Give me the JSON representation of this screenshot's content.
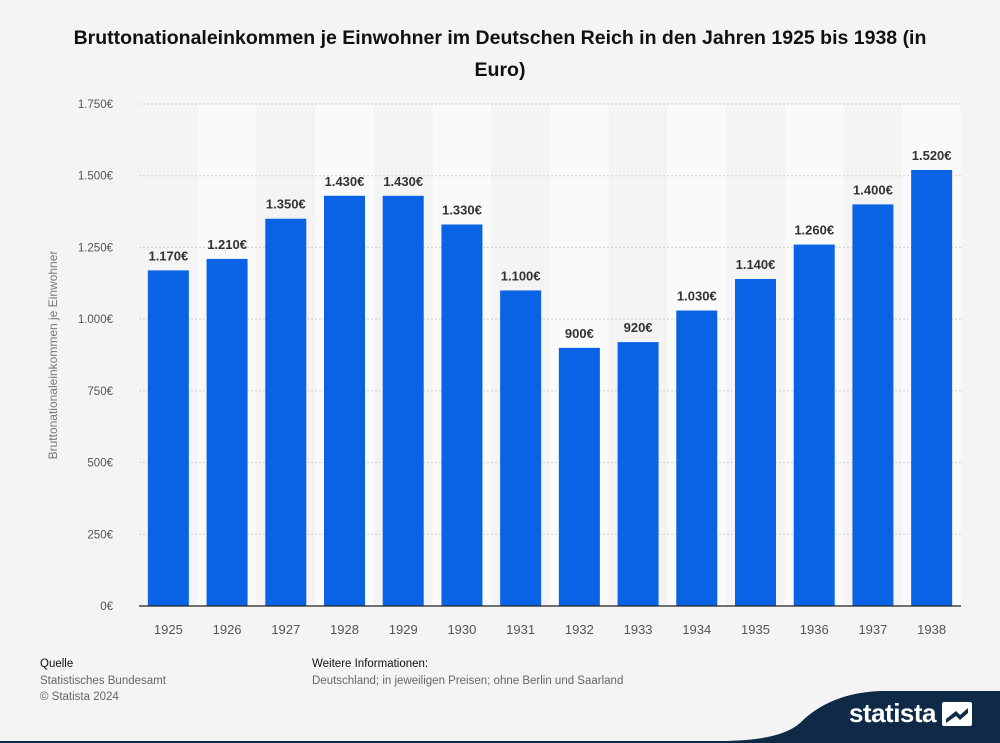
{
  "title": "Bruttonationaleinkommen je Einwohner im Deutschen Reich in den Jahren 1925 bis 1938 (in Euro)",
  "colors": {
    "bar": "#0a63e5",
    "grid": "#cfcfcf",
    "stripe": "#fafafa",
    "label": "#333333",
    "tick": "#555555",
    "brand_band": "#0e2a47"
  },
  "chart_data": {
    "type": "bar",
    "title": "Bruttonationaleinkommen je Einwohner im Deutschen Reich in den Jahren 1925 bis 1938 (in Euro)",
    "categories": [
      "1925",
      "1926",
      "1927",
      "1928",
      "1929",
      "1930",
      "1931",
      "1932",
      "1933",
      "1934",
      "1935",
      "1936",
      "1937",
      "1938"
    ],
    "values": [
      1170,
      1210,
      1350,
      1430,
      1430,
      1330,
      1100,
      900,
      920,
      1030,
      1140,
      1260,
      1400,
      1520
    ],
    "value_labels": [
      "1.170€",
      "1.210€",
      "1.350€",
      "1.430€",
      "1.430€",
      "1.330€",
      "1.100€",
      "900€",
      "920€",
      "1.030€",
      "1.140€",
      "1.260€",
      "1.400€",
      "1.520€"
    ],
    "yticks": [
      0,
      250,
      500,
      750,
      1000,
      1250,
      1500,
      1750
    ],
    "ytick_labels": [
      "0€",
      "250€",
      "500€",
      "750€",
      "1.000€",
      "1.250€",
      "1.500€",
      "1.750€"
    ],
    "ylim": [
      0,
      1750
    ],
    "xlabel": "",
    "ylabel": "Bruttonationaleinkommen je Einwohner",
    "grid": true
  },
  "footer": {
    "source_heading": "Quelle",
    "source_text": "Statistisches Bundesamt",
    "copyright": "© Statista 2024",
    "info_heading": "Weitere Informationen:",
    "info_text": "Deutschland; in jeweiligen Preisen; ohne Berlin und Saarland"
  },
  "brand": {
    "name": "statista",
    "icon": "statista-logo-icon"
  }
}
